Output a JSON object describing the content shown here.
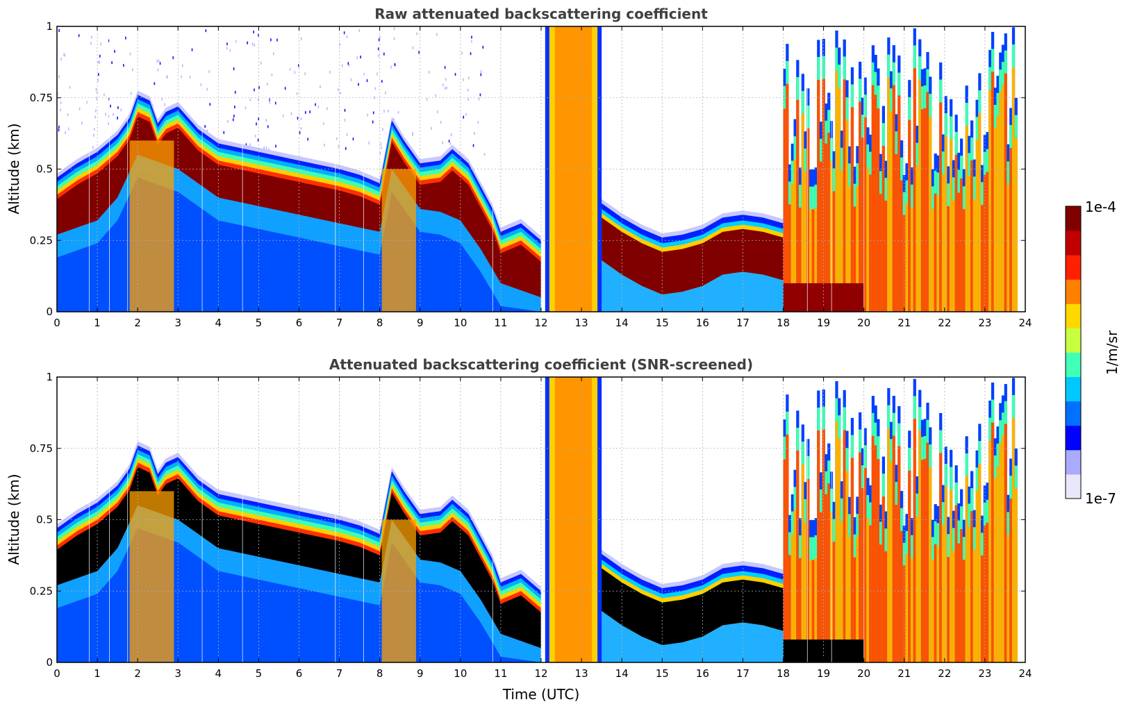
{
  "chart_data": [
    {
      "type": "heatmap",
      "title": "Raw attenuated backscattering coefficient",
      "xlabel": "",
      "ylabel": "Altitude (km)",
      "xlim": [
        0,
        24
      ],
      "ylim": [
        0,
        1
      ],
      "x_ticks": [
        "0",
        "1",
        "2",
        "3",
        "4",
        "5",
        "6",
        "7",
        "8",
        "9",
        "10",
        "11",
        "12",
        "13",
        "14",
        "15",
        "16",
        "17",
        "18",
        "19",
        "20",
        "21",
        "22",
        "23",
        "24"
      ],
      "y_ticks": [
        "0",
        "0.25",
        "0.5",
        "0.75",
        "1"
      ],
      "grid": true,
      "layer_top_km": [
        [
          0,
          0.47
        ],
        [
          0.5,
          0.52
        ],
        [
          1.0,
          0.56
        ],
        [
          1.5,
          0.62
        ],
        [
          1.8,
          0.68
        ],
        [
          2.0,
          0.76
        ],
        [
          2.3,
          0.74
        ],
        [
          2.5,
          0.66
        ],
        [
          2.7,
          0.7
        ],
        [
          3.0,
          0.72
        ],
        [
          3.5,
          0.64
        ],
        [
          4.0,
          0.59
        ],
        [
          5.0,
          0.56
        ],
        [
          6.0,
          0.53
        ],
        [
          7.0,
          0.5
        ],
        [
          7.5,
          0.48
        ],
        [
          8.0,
          0.45
        ],
        [
          8.3,
          0.67
        ],
        [
          8.6,
          0.6
        ],
        [
          9.0,
          0.52
        ],
        [
          9.5,
          0.53
        ],
        [
          9.8,
          0.57
        ],
        [
          10.2,
          0.52
        ],
        [
          10.5,
          0.44
        ],
        [
          10.8,
          0.36
        ],
        [
          11.0,
          0.28
        ],
        [
          11.5,
          0.31
        ],
        [
          12.0,
          0.25
        ]
      ],
      "mixed_layer_top_km": [
        [
          0,
          0.27
        ],
        [
          1.0,
          0.32
        ],
        [
          1.5,
          0.4
        ],
        [
          2.0,
          0.55
        ],
        [
          3.0,
          0.5
        ],
        [
          4.0,
          0.4
        ],
        [
          5.0,
          0.37
        ],
        [
          6.0,
          0.34
        ],
        [
          7.0,
          0.31
        ],
        [
          8.0,
          0.28
        ],
        [
          8.3,
          0.5
        ],
        [
          9.0,
          0.36
        ],
        [
          9.5,
          0.35
        ],
        [
          10.0,
          0.32
        ],
        [
          10.5,
          0.22
        ],
        [
          11.0,
          0.1
        ],
        [
          12.0,
          0.05
        ]
      ],
      "low_cloud_top_km": [
        [
          13.5,
          0.38
        ],
        [
          14.0,
          0.33
        ],
        [
          14.5,
          0.29
        ],
        [
          15.0,
          0.26
        ],
        [
          15.5,
          0.27
        ],
        [
          16.0,
          0.29
        ],
        [
          16.5,
          0.33
        ],
        [
          17.0,
          0.34
        ],
        [
          17.5,
          0.33
        ],
        [
          18.0,
          0.31
        ]
      ],
      "cloud_bands_utc": [
        [
          12.1,
          13.5
        ],
        [
          18.0,
          23.8
        ]
      ]
    },
    {
      "type": "heatmap",
      "title": "Attenuated backscattering coefficient (SNR-screened)",
      "xlabel": "Time (UTC)",
      "ylabel": "Altitude (km)",
      "xlim": [
        0,
        24
      ],
      "ylim": [
        0,
        1
      ],
      "x_ticks": [
        "0",
        "1",
        "2",
        "3",
        "4",
        "5",
        "6",
        "7",
        "8",
        "9",
        "10",
        "11",
        "12",
        "13",
        "14",
        "15",
        "16",
        "17",
        "18",
        "19",
        "20",
        "21",
        "22",
        "23",
        "24"
      ],
      "y_ticks": [
        "0",
        "0.25",
        "0.5",
        "0.75",
        "1"
      ],
      "grid": true,
      "screened_color": "#000000",
      "layer_top_km": [
        [
          0,
          0.47
        ],
        [
          0.5,
          0.52
        ],
        [
          1.0,
          0.56
        ],
        [
          1.5,
          0.62
        ],
        [
          1.8,
          0.68
        ],
        [
          2.0,
          0.76
        ],
        [
          2.3,
          0.74
        ],
        [
          2.5,
          0.66
        ],
        [
          2.7,
          0.7
        ],
        [
          3.0,
          0.72
        ],
        [
          3.5,
          0.64
        ],
        [
          4.0,
          0.59
        ],
        [
          5.0,
          0.56
        ],
        [
          6.0,
          0.53
        ],
        [
          7.0,
          0.5
        ],
        [
          7.5,
          0.48
        ],
        [
          8.0,
          0.45
        ],
        [
          8.3,
          0.67
        ],
        [
          8.6,
          0.6
        ],
        [
          9.0,
          0.52
        ],
        [
          9.5,
          0.53
        ],
        [
          9.8,
          0.57
        ],
        [
          10.2,
          0.52
        ],
        [
          10.5,
          0.44
        ],
        [
          10.8,
          0.36
        ],
        [
          11.0,
          0.28
        ],
        [
          11.5,
          0.31
        ],
        [
          12.0,
          0.25
        ]
      ],
      "mixed_layer_top_km": [
        [
          0,
          0.27
        ],
        [
          1.0,
          0.32
        ],
        [
          1.5,
          0.4
        ],
        [
          2.0,
          0.55
        ],
        [
          3.0,
          0.5
        ],
        [
          4.0,
          0.4
        ],
        [
          5.0,
          0.37
        ],
        [
          6.0,
          0.34
        ],
        [
          7.0,
          0.31
        ],
        [
          8.0,
          0.28
        ],
        [
          8.3,
          0.5
        ],
        [
          9.0,
          0.36
        ],
        [
          9.5,
          0.35
        ],
        [
          10.0,
          0.32
        ],
        [
          10.5,
          0.22
        ],
        [
          11.0,
          0.1
        ],
        [
          12.0,
          0.05
        ]
      ],
      "low_cloud_top_km": [
        [
          13.5,
          0.38
        ],
        [
          14.0,
          0.33
        ],
        [
          14.5,
          0.29
        ],
        [
          15.0,
          0.26
        ],
        [
          15.5,
          0.27
        ],
        [
          16.0,
          0.29
        ],
        [
          16.5,
          0.33
        ],
        [
          17.0,
          0.34
        ],
        [
          17.5,
          0.33
        ],
        [
          18.0,
          0.31
        ]
      ],
      "cloud_bands_utc": [
        [
          12.1,
          13.5
        ],
        [
          18.0,
          23.8
        ]
      ]
    }
  ],
  "colorbar": {
    "label": "1/m/sr",
    "max_label": "1e-4",
    "min_label": "1e-7",
    "scale": "log",
    "colors": [
      "#e8e8fa",
      "#aaaaff",
      "#0000ff",
      "#0070ff",
      "#00c8ff",
      "#40ffb8",
      "#c8ff40",
      "#ffd800",
      "#ff8000",
      "#ff2000",
      "#c00000",
      "#800000"
    ]
  }
}
